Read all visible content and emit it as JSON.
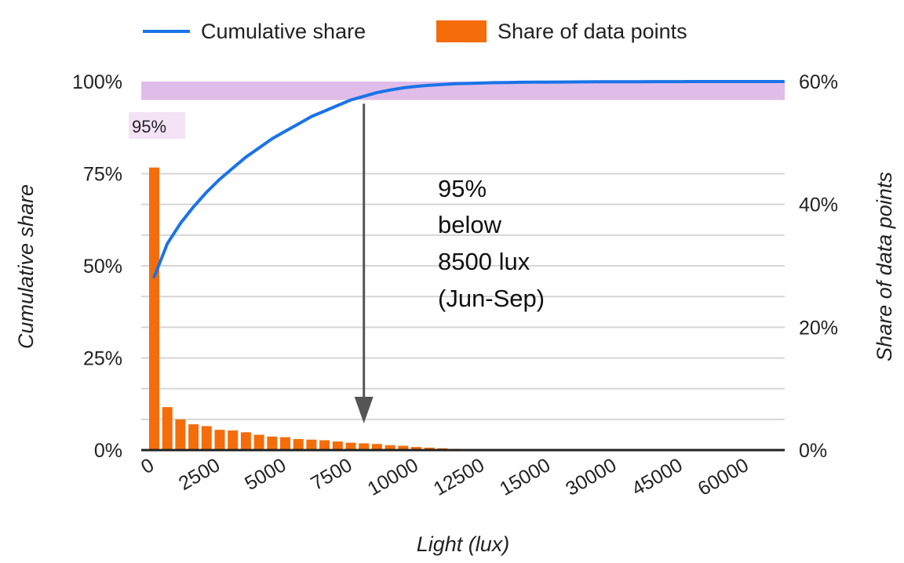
{
  "chart_data": {
    "type": "bar+line",
    "legend": {
      "position": "top",
      "items": [
        {
          "name": "Cumulative share",
          "kind": "line",
          "color": "#1a73e8"
        },
        {
          "name": "Share of data points",
          "kind": "bar",
          "color": "#f46d0a"
        }
      ]
    },
    "xlabel": "Light (lux)",
    "ylabel_left": "Cumulative share",
    "ylabel_right": "Share of data points",
    "x_tick_labels": [
      "0",
      "2500",
      "5000",
      "7500",
      "10000",
      "12500",
      "15000",
      "30000",
      "45000",
      "60000"
    ],
    "y_left_ticks": [
      "0%",
      "25%",
      "50%",
      "75%",
      "100%"
    ],
    "y_left_range": [
      0,
      100
    ],
    "y_right_ticks": [
      "0%",
      "20%",
      "40%",
      "60%"
    ],
    "y_right_range": [
      0,
      60
    ],
    "grid": true,
    "bins_count": 49,
    "share_of_data_points_pct": [
      46.0,
      7.0,
      5.0,
      4.2,
      3.9,
      3.3,
      3.2,
      2.9,
      2.5,
      2.2,
      2.1,
      1.8,
      1.7,
      1.6,
      1.4,
      1.2,
      1.1,
      1.0,
      0.8,
      0.7,
      0.5,
      0.4,
      0.3,
      0.2,
      0.15,
      0.1,
      0.1,
      0.08,
      0.06,
      0.05,
      0.05,
      0.04,
      0.04,
      0.03,
      0.03,
      0.02,
      0.02,
      0.02,
      0.02,
      0.01,
      0.01,
      0.01,
      0.01,
      0.01,
      0.01,
      0.01,
      0.01,
      0.01,
      0.01
    ],
    "cumulative_share_pct": [
      47,
      56,
      61.5,
      66,
      70,
      73.5,
      76.5,
      79.5,
      82,
      84.5,
      86.5,
      88.5,
      90.5,
      92,
      93.5,
      95,
      96,
      97,
      97.7,
      98.3,
      98.7,
      99,
      99.2,
      99.4,
      99.5,
      99.6,
      99.7,
      99.75,
      99.8,
      99.83,
      99.86,
      99.88,
      99.9,
      99.92,
      99.93,
      99.94,
      99.95,
      99.96,
      99.97,
      99.98,
      99.98,
      99.99,
      99.99,
      99.99,
      99.99,
      100,
      100,
      100,
      100
    ],
    "highlight_band": {
      "from_pct": 95,
      "to_pct": 100,
      "color": "#dfbde8",
      "label": "95%"
    },
    "annotation": {
      "lines": [
        "95%",
        "below",
        "8500 lux",
        "(Jun-Sep)"
      ],
      "arrow_at_bin": 16,
      "arrow_color": "#555555"
    }
  }
}
